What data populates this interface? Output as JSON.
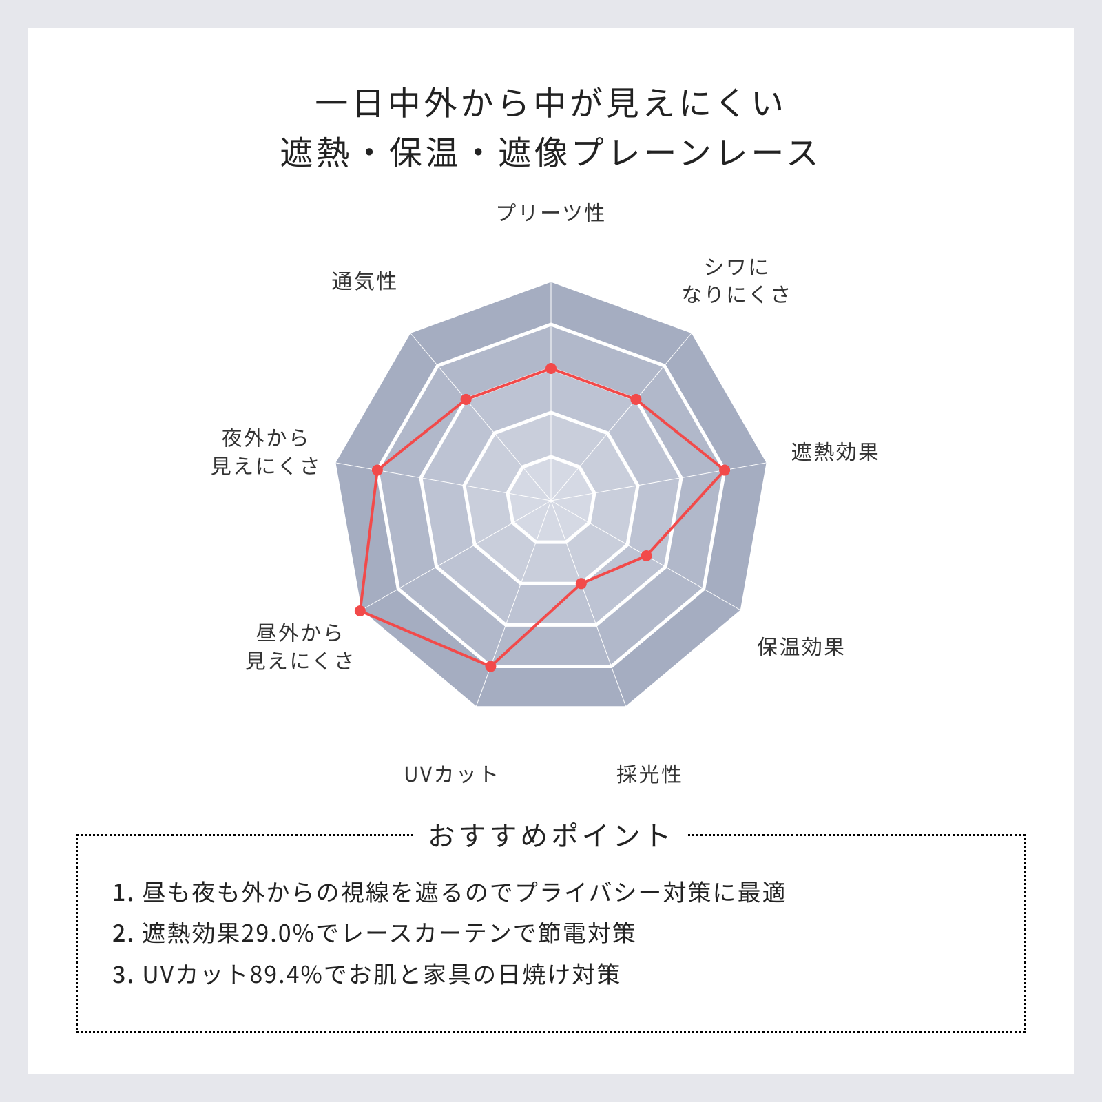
{
  "title_line1": "一日中外から中が見えにくい",
  "title_line2": "遮熱・保温・遮像プレーンレース",
  "radar": {
    "type": "radar",
    "sides": 9,
    "levels": 5,
    "start_angle_deg": -90,
    "svg_size": 760,
    "outer_radius": 320,
    "label_radius": 420,
    "ring_fill_outer": "#a5adc1",
    "ring_fill_inner": "#d5d9e4",
    "ring_stroke": "#ffffff",
    "ring_stroke_width": 5,
    "line_color": "#f24a4a",
    "line_width": 4,
    "marker_radius": 8,
    "marker_fill": "#f24a4a",
    "background_color": "#ffffff",
    "axes": [
      {
        "label": "プリーツ性",
        "value": 3
      },
      {
        "label": "シワに\nなりにくさ",
        "value": 3
      },
      {
        "label": "遮熱効果",
        "value": 4
      },
      {
        "label": "保温効果",
        "value": 2.5
      },
      {
        "label": "採光性",
        "value": 2
      },
      {
        "label": "UVカット",
        "value": 4
      },
      {
        "label": "昼外から\n見えにくさ",
        "value": 5
      },
      {
        "label": "夜外から\n見えにくさ",
        "value": 4
      },
      {
        "label": "通気性",
        "value": 3
      }
    ],
    "label_fontsize": 30,
    "label_color": "#333333"
  },
  "points": {
    "title": "おすすめポイント",
    "items": [
      "昼も夜も外からの視線を遮るのでプライバシー対策に最適",
      "遮熱効果29.0%でレースカーテンで節電対策",
      "UVカット89.4%でお肌と家具の日焼け対策"
    ],
    "border_style": "dotted",
    "border_color": "#000000",
    "title_fontsize": 40,
    "item_fontsize": 34
  },
  "page": {
    "bg_color": "#e6e7ec",
    "card_bg": "#ffffff"
  }
}
